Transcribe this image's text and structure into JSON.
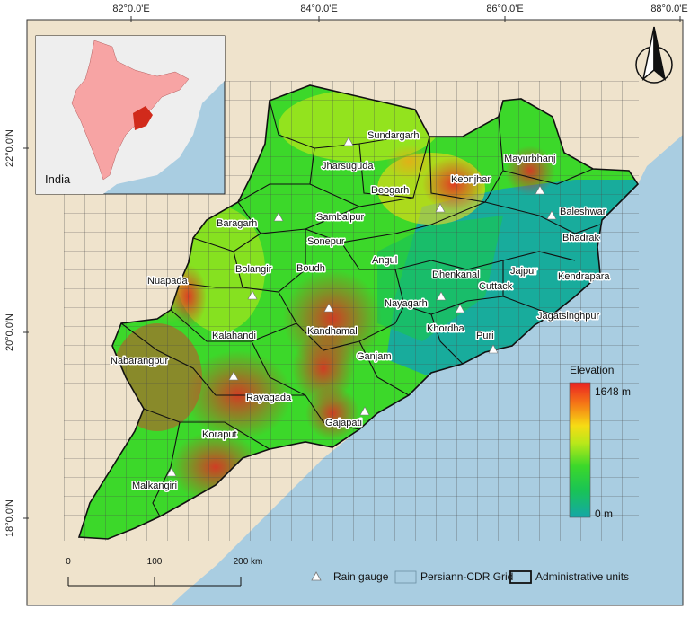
{
  "coords": {
    "top": [
      "82°0.0'E",
      "84°0.0'E",
      "86°0.0'E",
      "88°0.0'E"
    ],
    "left": [
      "22°0.0'N",
      "20°0.0'N",
      "18°0.0'N"
    ]
  },
  "inset": {
    "label": "India"
  },
  "districts": [
    {
      "name": "Sundargarh"
    },
    {
      "name": "Jharsuguda"
    },
    {
      "name": "Mayurbhanj"
    },
    {
      "name": "Keonjhar"
    },
    {
      "name": "Deogarh"
    },
    {
      "name": "Baragarh"
    },
    {
      "name": "Sambalpur"
    },
    {
      "name": "Baleshwar"
    },
    {
      "name": "Bhadrak"
    },
    {
      "name": "Sonepur"
    },
    {
      "name": "Bolangir"
    },
    {
      "name": "Boudh"
    },
    {
      "name": "Angul"
    },
    {
      "name": "Dhenkanal"
    },
    {
      "name": "Jajpur"
    },
    {
      "name": "Kendrapara"
    },
    {
      "name": "Nuapada"
    },
    {
      "name": "Cuttack"
    },
    {
      "name": "Nayagarh"
    },
    {
      "name": "Khordha"
    },
    {
      "name": "Jagatsinghpur"
    },
    {
      "name": "Kalahandi"
    },
    {
      "name": "Kandhamal"
    },
    {
      "name": "Puri"
    },
    {
      "name": "Nabarangpur"
    },
    {
      "name": "Ganjam"
    },
    {
      "name": "Rayagada"
    },
    {
      "name": "Gajapati"
    },
    {
      "name": "Koraput"
    },
    {
      "name": "Malkangiri"
    }
  ],
  "elevation_legend": {
    "title": "Elevation",
    "max": "1648 m",
    "min": "0 m"
  },
  "scale_bar": {
    "ticks": [
      "0",
      "100",
      "200 km"
    ]
  },
  "legend": {
    "rain_gauge": "Rain gauge",
    "grid": "Persiann-CDR Grid",
    "admin": "Administrative units"
  },
  "colors": {
    "sea": "#a9cde1",
    "land": "#efe3cc",
    "inset_land": "#f7a4a4",
    "inset_highlight": "#d12a1b"
  },
  "elevation_ramp": [
    "#14a7a8",
    "#19c455",
    "#3cd82a",
    "#b8e81a",
    "#f6dc14",
    "#f57a16",
    "#ea2222"
  ]
}
